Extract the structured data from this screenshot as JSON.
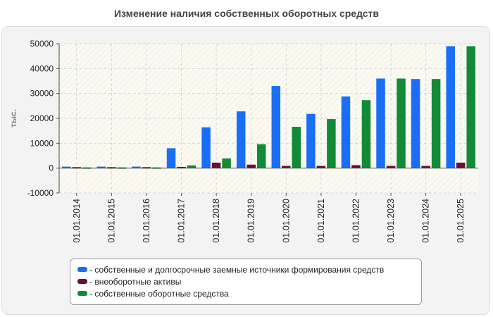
{
  "chart_data": {
    "type": "bar",
    "title": "Изменение наличия собственных оборотных средств",
    "ylabel": "тыс.",
    "xlabel": "",
    "ylim": [
      -10000,
      50000
    ],
    "yticks": [
      -10000,
      0,
      10000,
      20000,
      30000,
      40000,
      50000
    ],
    "categories": [
      "01.01.2014",
      "01.01.2015",
      "01.01.2016",
      "01.01.2017",
      "01.01.2018",
      "01.01.2019",
      "01.01.2020",
      "01.01.2021",
      "01.01.2022",
      "01.01.2023",
      "01.01.2024",
      "01.01.2025"
    ],
    "series": [
      {
        "name": "- собственные и долгосрочные заемные источники формирования средств",
        "color": "#1a6ef5",
        "values": [
          600,
          600,
          600,
          8000,
          16400,
          22800,
          33000,
          21800,
          28800,
          36000,
          35800,
          49000
        ]
      },
      {
        "name": "- внеоборотные активы",
        "color": "#6b0f3a",
        "values": [
          400,
          400,
          400,
          500,
          2200,
          1400,
          900,
          900,
          1200,
          900,
          900,
          2200
        ]
      },
      {
        "name": "- собственные оборотные средства",
        "color": "#138a36",
        "values": [
          300,
          300,
          300,
          1100,
          3900,
          9600,
          16600,
          19700,
          27300,
          36000,
          35800,
          49000
        ]
      }
    ],
    "legend_position": "bottom",
    "grid": true
  }
}
